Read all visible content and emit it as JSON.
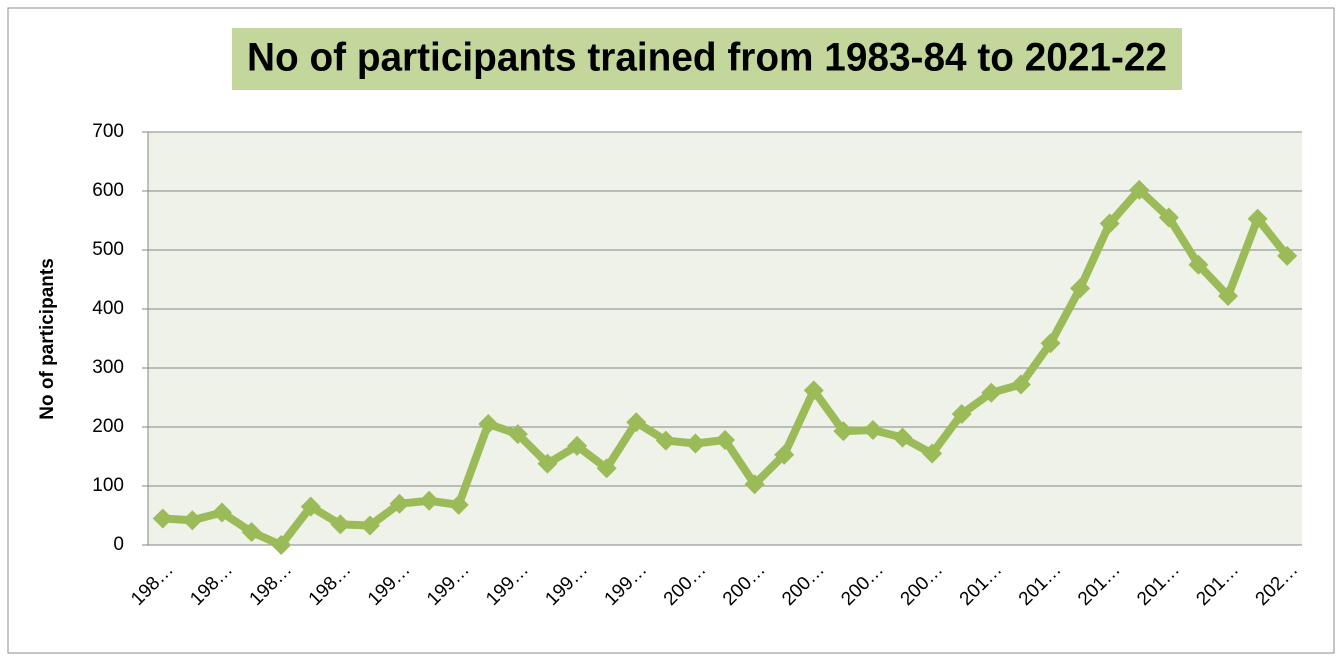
{
  "chart_data": {
    "type": "line",
    "title": "No of participants trained from 1983-84 to 2021-22",
    "y_label": "No of participants",
    "categories": [
      "198…",
      null,
      "198…",
      null,
      "198…",
      null,
      "198…",
      null,
      "199…",
      null,
      "199…",
      null,
      "199…",
      null,
      "199…",
      null,
      "199…",
      null,
      "200…",
      null,
      "200…",
      null,
      "200…",
      null,
      "200…",
      null,
      "200…",
      null,
      "201…",
      null,
      "201…",
      null,
      "201…",
      null,
      "201…",
      null,
      "201…",
      null,
      "202…"
    ],
    "series": [
      {
        "name": "No of participants",
        "color": "#9bbb59",
        "values": [
          45,
          42,
          55,
          22,
          0,
          65,
          35,
          33,
          70,
          75,
          68,
          205,
          188,
          138,
          168,
          130,
          208,
          177,
          172,
          178,
          103,
          153,
          262,
          193,
          195,
          182,
          155,
          222,
          258,
          272,
          342,
          435,
          545,
          602,
          555,
          475,
          422,
          553,
          490
        ]
      }
    ],
    "ylim": [
      0,
      700
    ],
    "yticks": [
      0,
      100,
      200,
      300,
      400,
      500,
      600,
      700
    ],
    "grid": true
  }
}
